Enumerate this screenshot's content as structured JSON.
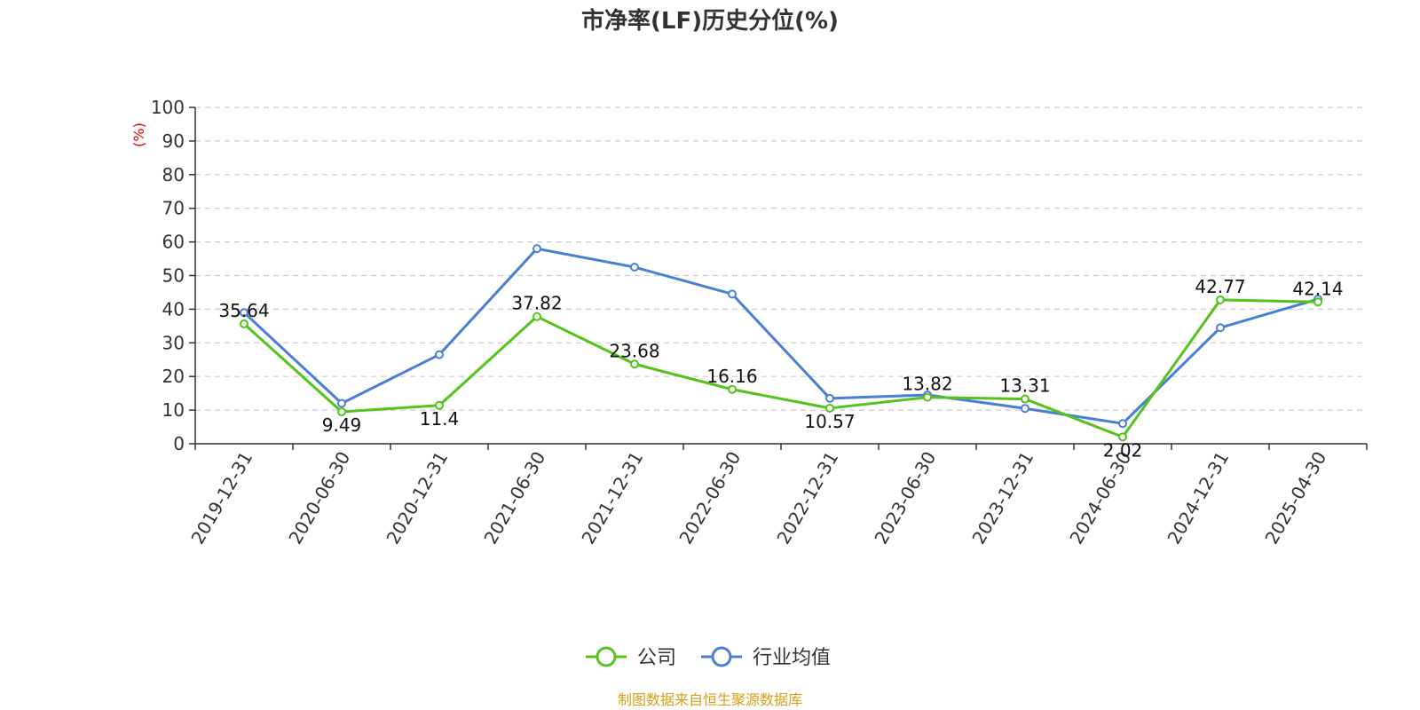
{
  "chart_data": {
    "type": "line",
    "title": "市净率(LF)历史分位(%)",
    "unit_label": "(%)",
    "x": [
      "2019-12-31",
      "2020-06-30",
      "2020-12-31",
      "2021-06-30",
      "2021-12-31",
      "2022-06-30",
      "2022-12-31",
      "2023-06-30",
      "2023-12-31",
      "2024-06-30",
      "2024-12-31",
      "2025-04-30"
    ],
    "ylim": [
      0,
      100
    ],
    "yticks": [
      0,
      10,
      20,
      30,
      40,
      50,
      60,
      70,
      80,
      90,
      100
    ],
    "grid": true,
    "legend_position": "bottom-center",
    "series": [
      {
        "name": "公司",
        "color": "#52c41a",
        "values": [
          35.64,
          9.49,
          11.4,
          37.82,
          23.68,
          16.16,
          10.57,
          13.82,
          13.31,
          2.02,
          42.77,
          42.14
        ],
        "labels": [
          "35.64",
          "9.49",
          "11.4",
          "37.82",
          "23.68",
          "16.16",
          "10.57",
          "13.82",
          "13.31",
          "2.02",
          "42.77",
          "42.14"
        ]
      },
      {
        "name": "行业均值",
        "color": "#4a7fd8",
        "values": [
          39,
          12,
          26.5,
          58,
          52.5,
          44.5,
          13.5,
          14.5,
          10.5,
          6,
          34.5,
          43
        ]
      }
    ]
  },
  "footer": {
    "source": "制图数据来自恒生聚源数据库",
    "color": "#d4a017"
  },
  "colors": {
    "unit_label": "#e00000",
    "grid": "#cccccc",
    "axis": "#333333"
  }
}
